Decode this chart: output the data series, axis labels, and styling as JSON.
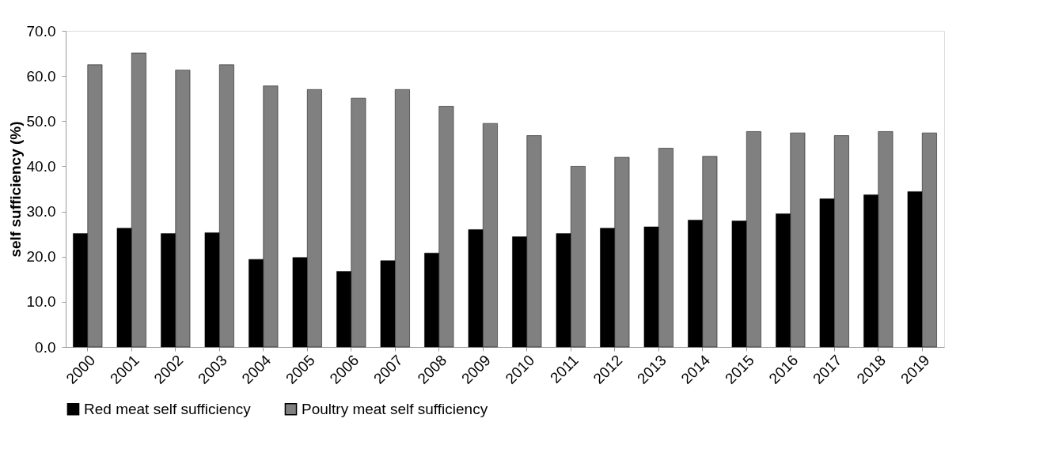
{
  "chart_data": {
    "type": "bar",
    "ylabel": "self sufficiency (%)",
    "categories": [
      "2000",
      "2001",
      "2002",
      "2003",
      "2004",
      "2005",
      "2006",
      "2007",
      "2008",
      "2009",
      "2010",
      "2011",
      "2012",
      "2013",
      "2014",
      "2015",
      "2016",
      "2017",
      "2018",
      "2019"
    ],
    "series": [
      {
        "name": "Red meat self sufficiency",
        "color": "#000000",
        "values": [
          25.1,
          26.3,
          25.1,
          25.3,
          19.4,
          19.8,
          16.7,
          19.1,
          20.8,
          26.0,
          24.4,
          25.1,
          26.3,
          26.6,
          28.1,
          27.9,
          29.5,
          32.8,
          33.7,
          34.4
        ]
      },
      {
        "name": "Poultry meat self sufficiency",
        "color": "#808080",
        "values": [
          62.5,
          65.1,
          61.3,
          62.5,
          57.8,
          57.0,
          55.1,
          57.0,
          53.3,
          49.5,
          46.8,
          40.0,
          42.0,
          44.0,
          42.2,
          47.7,
          47.4,
          46.8,
          47.7,
          47.4
        ]
      }
    ],
    "ylim": [
      0,
      70
    ],
    "yticks": [
      {
        "value": 0,
        "label": "0.0"
      },
      {
        "value": 10,
        "label": "10.0"
      },
      {
        "value": 20,
        "label": "20.0"
      },
      {
        "value": 30,
        "label": "30.0"
      },
      {
        "value": 40,
        "label": "40.0"
      },
      {
        "value": 50,
        "label": "50.0"
      },
      {
        "value": 60,
        "label": "60.0"
      },
      {
        "value": 70,
        "label": "70.0"
      }
    ],
    "grid": false,
    "legend": "bottom"
  }
}
